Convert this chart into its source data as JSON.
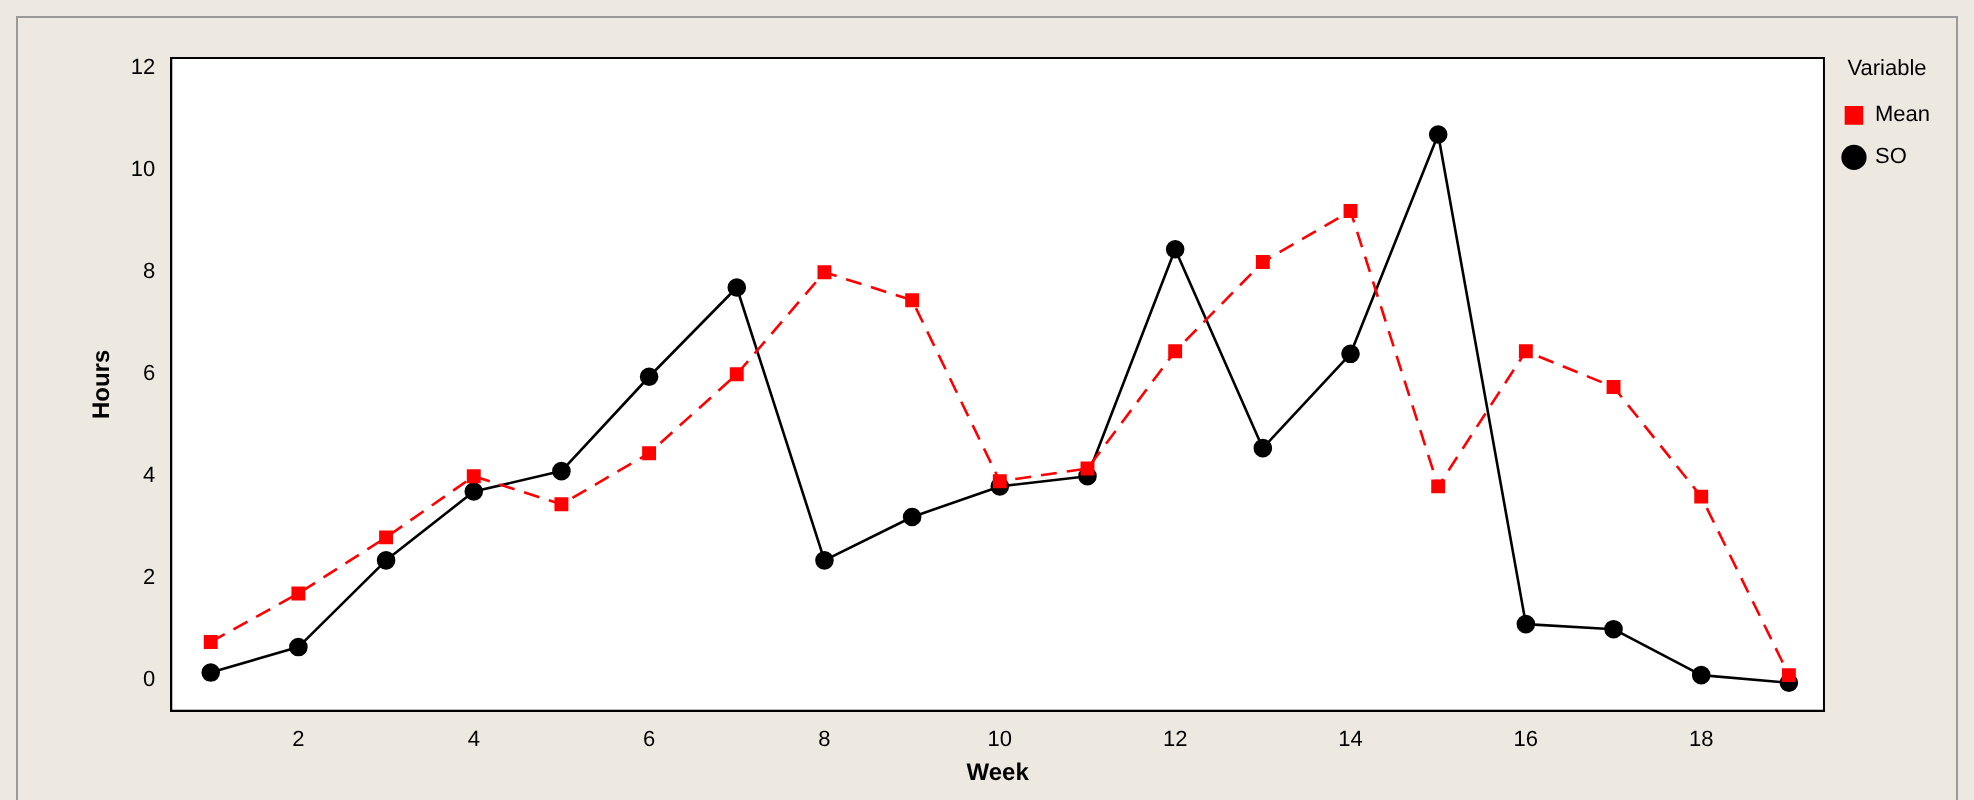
{
  "chart_data": {
    "type": "line",
    "xlabel": "Week",
    "ylabel": "Hours",
    "legend_title": "Variable",
    "legend": "top right",
    "grid": false,
    "x": [
      1,
      2,
      3,
      4,
      5,
      6,
      7,
      8,
      9,
      10,
      11,
      12,
      13,
      14,
      15,
      16,
      17,
      18,
      19
    ],
    "xlim": [
      0.55,
      19.4
    ],
    "xticks": [
      2,
      4,
      6,
      8,
      10,
      12,
      14,
      16,
      18
    ],
    "ylim": [
      -0.6,
      12.2
    ],
    "yticks": [
      0,
      2,
      4,
      6,
      8,
      10,
      12
    ],
    "series": [
      {
        "name": "SO",
        "color": "#000000",
        "marker": "circle",
        "line_style": "solid",
        "values": [
          0.15,
          0.65,
          2.35,
          3.7,
          4.1,
          5.95,
          7.7,
          2.35,
          3.2,
          3.8,
          4.0,
          8.45,
          4.55,
          6.4,
          10.7,
          1.1,
          1.0,
          0.1,
          -0.05
        ]
      },
      {
        "name": "Mean",
        "color": "#ff0000",
        "marker": "square",
        "line_style": "dashed",
        "values": [
          0.75,
          1.7,
          2.8,
          4.0,
          3.45,
          4.45,
          6.0,
          8.0,
          7.45,
          3.9,
          4.15,
          6.45,
          8.2,
          9.2,
          3.8,
          6.45,
          5.75,
          3.6,
          0.1
        ]
      }
    ]
  }
}
